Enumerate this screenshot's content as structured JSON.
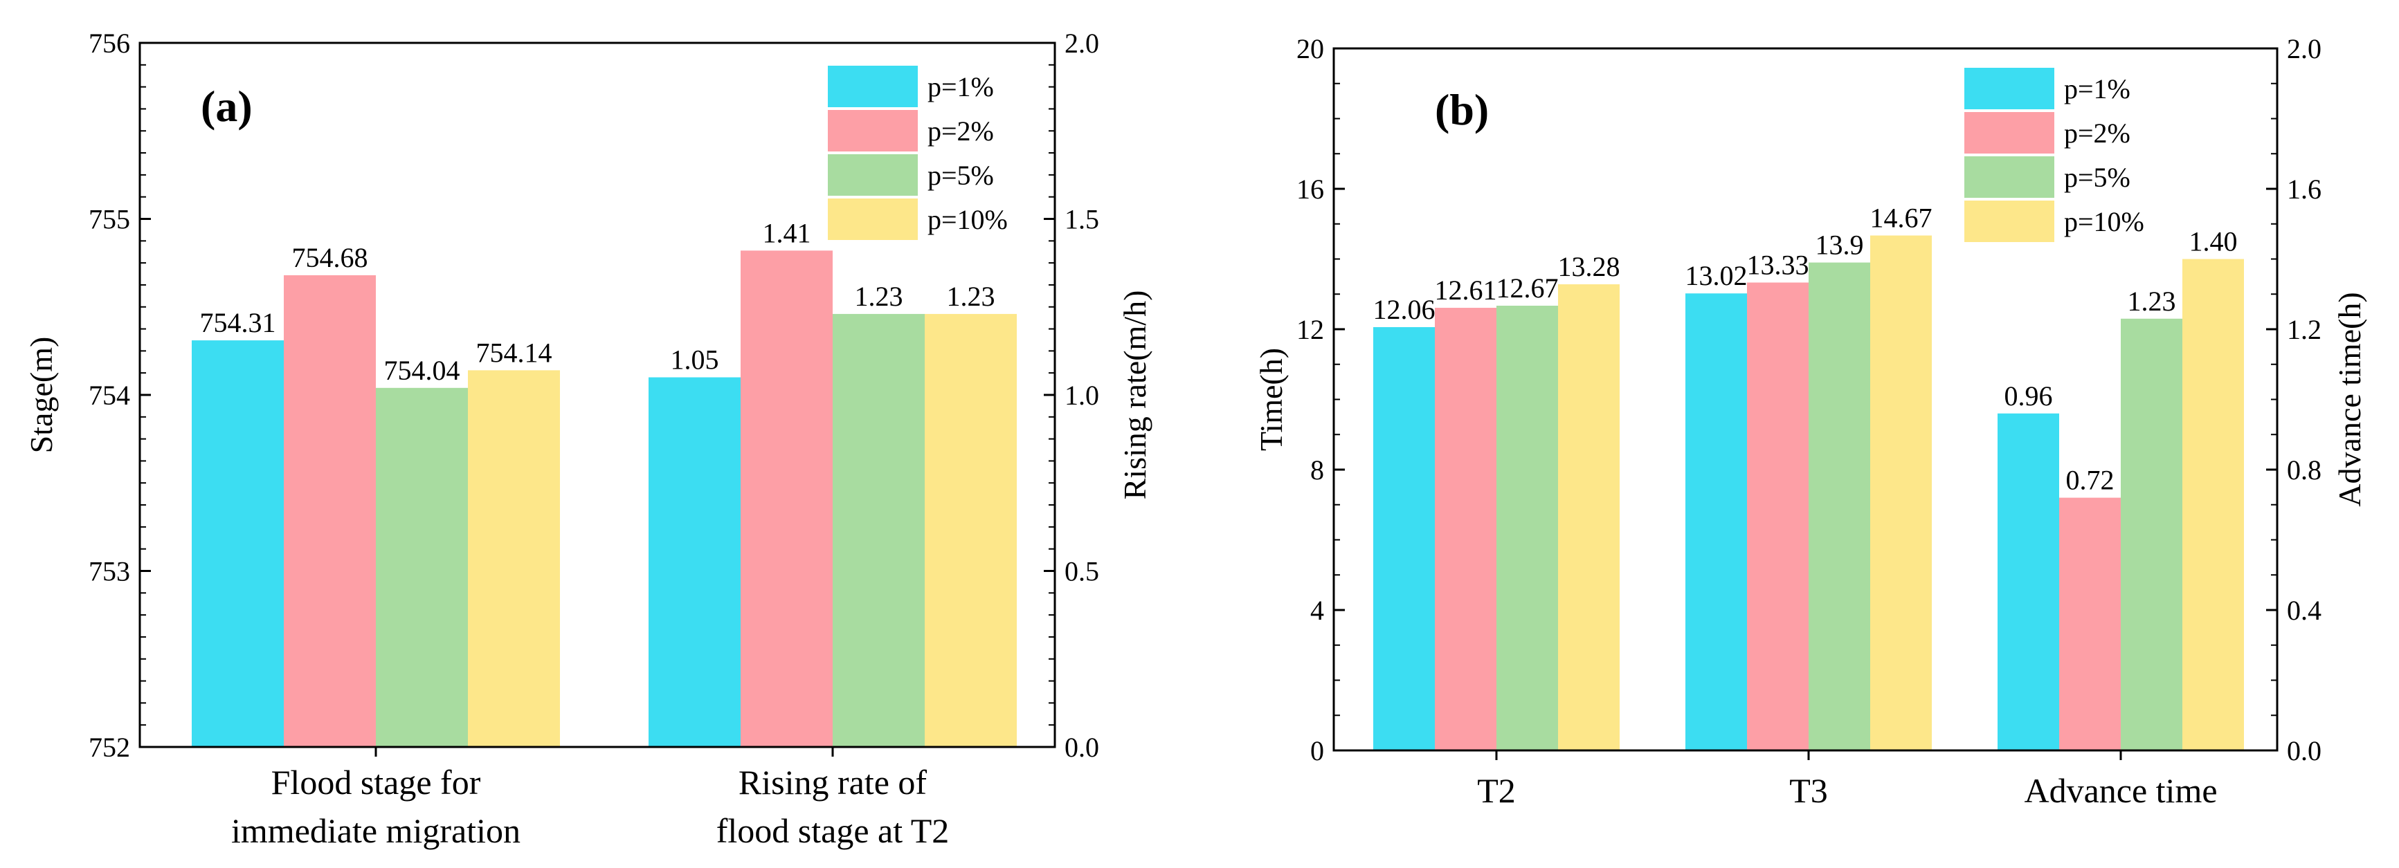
{
  "colors": {
    "p1": "#3CDDF2",
    "p2": "#FD9FA6",
    "p5": "#A8DCA0",
    "p10": "#FDE78A"
  },
  "chart_data": [
    {
      "panel": "(a)",
      "type": "bar",
      "ylabel": "Stage(m)",
      "y2label": "Rising rate(m/h)",
      "ylim": [
        752,
        756
      ],
      "y2lim": [
        0.0,
        2.0
      ],
      "yticks": [
        "752",
        "753",
        "754",
        "755",
        "756"
      ],
      "y2ticks": [
        "0.0",
        "0.5",
        "1.0",
        "1.5",
        "2.0"
      ],
      "legend": [
        "p=1%",
        "p=2%",
        "p=5%",
        "p=10%"
      ],
      "legend_position": "top-right",
      "groups": [
        {
          "label_lines": [
            "Flood stage for",
            "immediate migration"
          ],
          "axis": "left",
          "values": [
            754.31,
            754.68,
            754.04,
            754.14
          ],
          "labels": [
            "754.31",
            "754.68",
            "754.04",
            "754.14"
          ]
        },
        {
          "label_lines": [
            "Rising rate of",
            "flood stage at T2"
          ],
          "axis": "right",
          "values": [
            1.05,
            1.41,
            1.23,
            1.23
          ],
          "labels": [
            "1.05",
            "1.41",
            "1.23",
            "1.23"
          ]
        }
      ]
    },
    {
      "panel": "(b)",
      "type": "bar",
      "ylabel": "Time(h)",
      "y2label": "Advance time(h)",
      "ylim": [
        0,
        20
      ],
      "y2lim": [
        0.0,
        2.0
      ],
      "yticks": [
        "0",
        "4",
        "8",
        "12",
        "16",
        "20"
      ],
      "y2ticks": [
        "0.0",
        "0.4",
        "0.8",
        "1.2",
        "1.6",
        "2.0"
      ],
      "legend": [
        "p=1%",
        "p=2%",
        "p=5%",
        "p=10%"
      ],
      "legend_position": "top-right",
      "groups": [
        {
          "label_lines": [
            "T2"
          ],
          "axis": "left",
          "values": [
            12.06,
            12.61,
            12.67,
            13.28
          ],
          "labels": [
            "12.06",
            "12.61",
            "12.67",
            "13.28"
          ]
        },
        {
          "label_lines": [
            "T3"
          ],
          "axis": "left",
          "values": [
            13.02,
            13.33,
            13.9,
            14.67
          ],
          "labels": [
            "13.02",
            "13.33",
            "13.9",
            "14.67"
          ]
        },
        {
          "label_lines": [
            "Advance time"
          ],
          "axis": "right",
          "values": [
            0.96,
            0.72,
            1.23,
            1.4
          ],
          "labels": [
            "0.96",
            "0.72",
            "1.23",
            "1.40"
          ]
        }
      ]
    }
  ]
}
